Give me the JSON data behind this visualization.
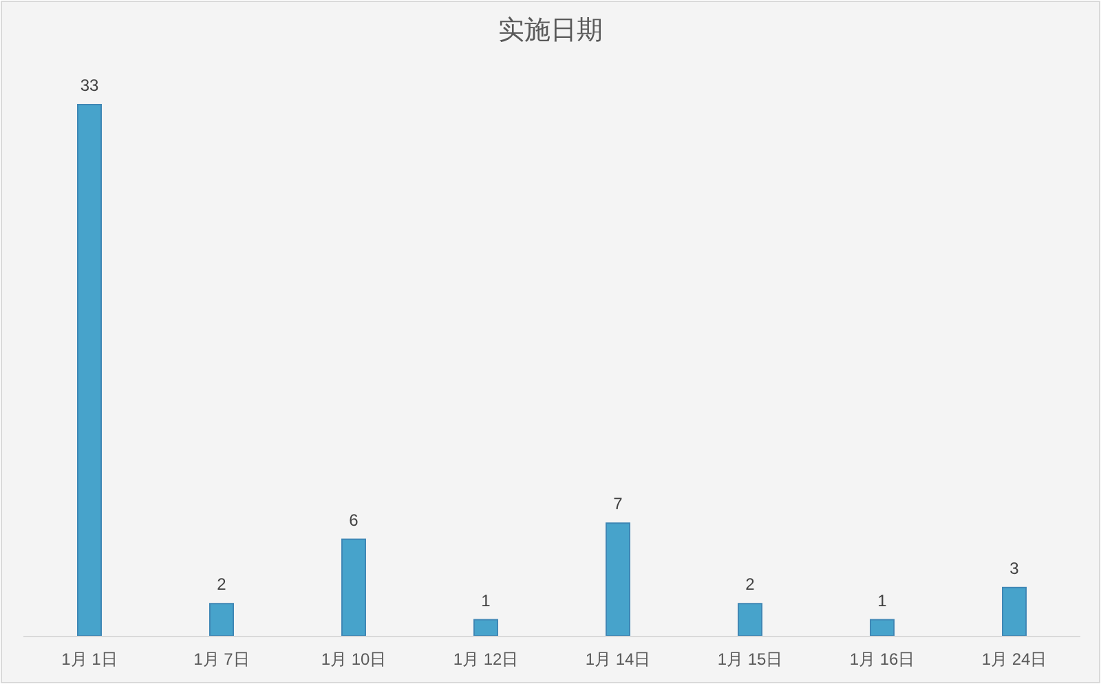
{
  "chart_data": {
    "type": "bar",
    "title": "实施日期",
    "categories": [
      "1月 1日",
      "1月 7日",
      "1月 10日",
      "1月 12日",
      "1月 14日",
      "1月 15日",
      "1月 16日",
      "1月 24日"
    ],
    "values": [
      33,
      2,
      6,
      1,
      7,
      2,
      1,
      3
    ],
    "color": "#47a3cb",
    "data_labels": true,
    "grid": false,
    "legend": false
  }
}
